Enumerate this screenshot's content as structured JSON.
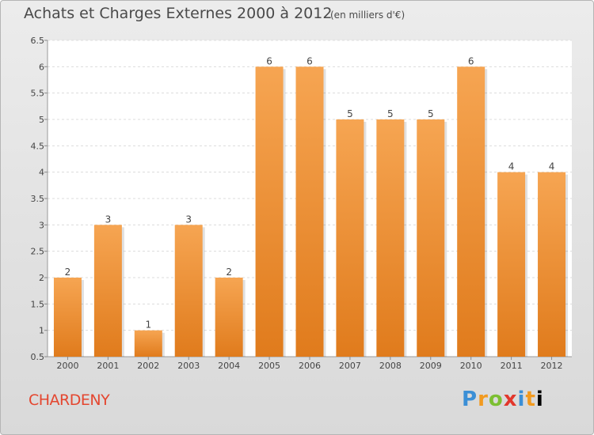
{
  "header": {
    "title": "Achats et Charges Externes 2000 à 2012",
    "subtitle": "(en milliers d'€)"
  },
  "footer": {
    "commune": "CHARDENY",
    "logo_text": "Proxiti"
  },
  "colors": {
    "bar_top": "#f6a552",
    "bar_bottom": "#e07b1c",
    "commune": "#e4462f"
  },
  "chart_data": {
    "type": "bar",
    "title": "Achats et Charges Externes 2000 à 2012",
    "subtitle": "(en milliers d'€)",
    "categories": [
      "2000",
      "2001",
      "2002",
      "2003",
      "2004",
      "2005",
      "2006",
      "2007",
      "2008",
      "2009",
      "2010",
      "2011",
      "2012"
    ],
    "values": [
      2,
      3,
      1,
      3,
      2,
      6,
      6,
      5,
      5,
      5,
      6,
      4,
      4
    ],
    "ylim": [
      0.5,
      6.5
    ],
    "yticks": [
      "0.5",
      "1",
      "1.5",
      "2",
      "2.5",
      "3",
      "3.5",
      "4",
      "4.5",
      "5",
      "5.5",
      "6",
      "6.5"
    ],
    "grid": true,
    "data_labels": true
  }
}
